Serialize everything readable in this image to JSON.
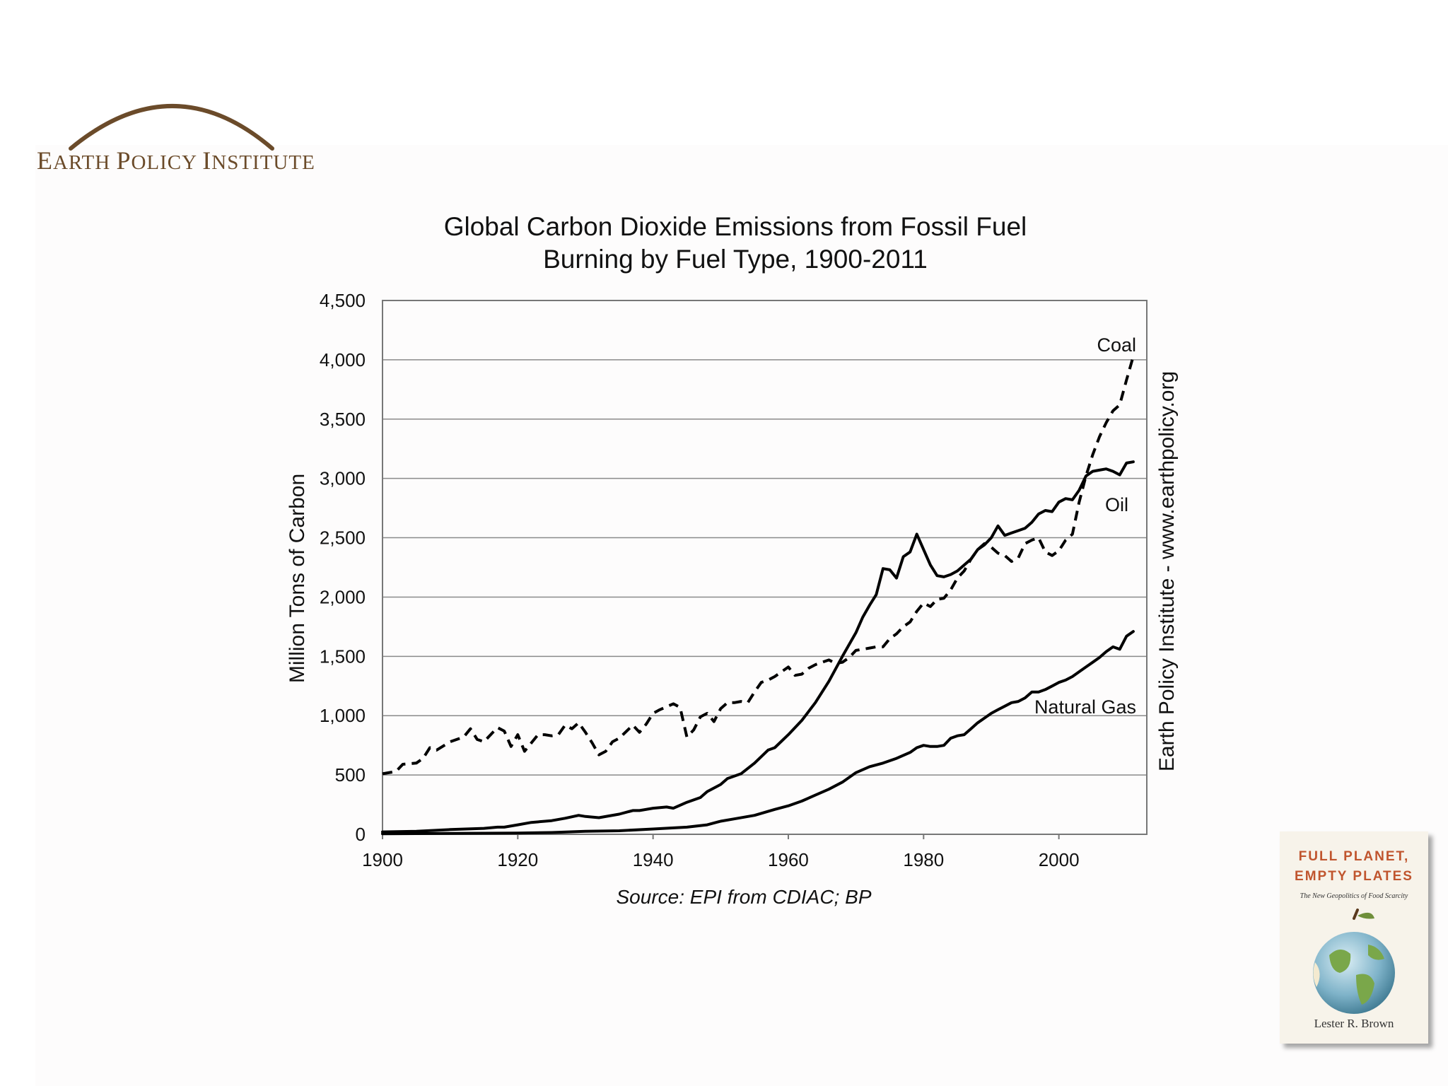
{
  "logo": {
    "text_first": "E",
    "text_rest": "ARTH ",
    "w2_first": "P",
    "w2_rest": "OLICY ",
    "w3_first": "I",
    "w3_rest": "NSTITUTE",
    "color": "#6b4b2a"
  },
  "side_note": "Earth Policy Institute - www.earthpolicy.org",
  "book": {
    "title": "FULL PLANET,\nEMPTY PLATES",
    "subtitle": "The New Geopolitics of Food Scarcity",
    "author": "Lester R. Brown",
    "title_color": "#c0552e"
  },
  "chart_data": {
    "type": "line",
    "title_line1": "Global Carbon Dioxide Emissions from Fossil Fuel",
    "title_line2": "Burning by Fuel Type, 1900-2011",
    "xlabel": "",
    "ylabel": "Million Tons of Carbon",
    "source": "Source: EPI from CDIAC; BP",
    "xlim": [
      1900,
      2013
    ],
    "ylim": [
      0,
      4500
    ],
    "x_ticks": [
      "1900",
      "1920",
      "1940",
      "1960",
      "1980",
      "2000"
    ],
    "y_ticks": [
      "0",
      "500",
      "1,000",
      "1,500",
      "2,000",
      "2,500",
      "3,000",
      "3,500",
      "4,000",
      "4,500"
    ],
    "grid": true,
    "series": [
      {
        "name": "Coal",
        "style": "dashed",
        "points": [
          [
            1900,
            510
          ],
          [
            1902,
            530
          ],
          [
            1903,
            590
          ],
          [
            1905,
            600
          ],
          [
            1906,
            640
          ],
          [
            1907,
            730
          ],
          [
            1908,
            710
          ],
          [
            1910,
            780
          ],
          [
            1912,
            820
          ],
          [
            1913,
            890
          ],
          [
            1914,
            800
          ],
          [
            1915,
            780
          ],
          [
            1917,
            900
          ],
          [
            1918,
            870
          ],
          [
            1919,
            740
          ],
          [
            1920,
            840
          ],
          [
            1921,
            700
          ],
          [
            1923,
            840
          ],
          [
            1924,
            840
          ],
          [
            1925,
            830
          ],
          [
            1926,
            840
          ],
          [
            1927,
            920
          ],
          [
            1928,
            890
          ],
          [
            1929,
            940
          ],
          [
            1930,
            860
          ],
          [
            1931,
            770
          ],
          [
            1932,
            670
          ],
          [
            1933,
            700
          ],
          [
            1934,
            780
          ],
          [
            1935,
            810
          ],
          [
            1937,
            920
          ],
          [
            1938,
            860
          ],
          [
            1939,
            930
          ],
          [
            1940,
            1020
          ],
          [
            1941,
            1050
          ],
          [
            1943,
            1100
          ],
          [
            1944,
            1070
          ],
          [
            1945,
            820
          ],
          [
            1946,
            880
          ],
          [
            1947,
            990
          ],
          [
            1948,
            1020
          ],
          [
            1949,
            950
          ],
          [
            1950,
            1060
          ],
          [
            1951,
            1110
          ],
          [
            1952,
            1110
          ],
          [
            1953,
            1120
          ],
          [
            1954,
            1110
          ],
          [
            1955,
            1200
          ],
          [
            1956,
            1280
          ],
          [
            1957,
            1300
          ],
          [
            1958,
            1330
          ],
          [
            1959,
            1370
          ],
          [
            1960,
            1410
          ],
          [
            1961,
            1340
          ],
          [
            1962,
            1350
          ],
          [
            1963,
            1400
          ],
          [
            1964,
            1430
          ],
          [
            1965,
            1450
          ],
          [
            1966,
            1470
          ],
          [
            1967,
            1440
          ],
          [
            1968,
            1450
          ],
          [
            1969,
            1490
          ],
          [
            1970,
            1550
          ],
          [
            1971,
            1560
          ],
          [
            1972,
            1570
          ],
          [
            1973,
            1580
          ],
          [
            1974,
            1580
          ],
          [
            1975,
            1650
          ],
          [
            1976,
            1690
          ],
          [
            1977,
            1750
          ],
          [
            1978,
            1790
          ],
          [
            1979,
            1880
          ],
          [
            1980,
            1950
          ],
          [
            1981,
            1920
          ],
          [
            1982,
            1980
          ],
          [
            1983,
            1990
          ],
          [
            1984,
            2060
          ],
          [
            1985,
            2160
          ],
          [
            1986,
            2220
          ],
          [
            1987,
            2320
          ],
          [
            1988,
            2400
          ],
          [
            1989,
            2450
          ],
          [
            1990,
            2420
          ],
          [
            1991,
            2370
          ],
          [
            1992,
            2350
          ],
          [
            1993,
            2300
          ],
          [
            1994,
            2330
          ],
          [
            1995,
            2450
          ],
          [
            1996,
            2480
          ],
          [
            1997,
            2500
          ],
          [
            1998,
            2380
          ],
          [
            1999,
            2350
          ],
          [
            2000,
            2390
          ],
          [
            2001,
            2480
          ],
          [
            2002,
            2530
          ],
          [
            2003,
            2800
          ],
          [
            2004,
            3020
          ],
          [
            2005,
            3200
          ],
          [
            2006,
            3350
          ],
          [
            2007,
            3470
          ],
          [
            2008,
            3570
          ],
          [
            2009,
            3620
          ],
          [
            2010,
            3830
          ],
          [
            2011,
            4030
          ]
        ]
      },
      {
        "name": "Oil",
        "style": "solid",
        "points": [
          [
            1900,
            20
          ],
          [
            1905,
            25
          ],
          [
            1910,
            40
          ],
          [
            1915,
            50
          ],
          [
            1917,
            60
          ],
          [
            1918,
            60
          ],
          [
            1920,
            80
          ],
          [
            1922,
            100
          ],
          [
            1925,
            115
          ],
          [
            1927,
            135
          ],
          [
            1929,
            160
          ],
          [
            1930,
            150
          ],
          [
            1932,
            140
          ],
          [
            1935,
            170
          ],
          [
            1937,
            200
          ],
          [
            1938,
            200
          ],
          [
            1940,
            220
          ],
          [
            1942,
            230
          ],
          [
            1943,
            220
          ],
          [
            1945,
            270
          ],
          [
            1947,
            310
          ],
          [
            1948,
            360
          ],
          [
            1950,
            420
          ],
          [
            1951,
            470
          ],
          [
            1953,
            510
          ],
          [
            1955,
            600
          ],
          [
            1957,
            710
          ],
          [
            1958,
            730
          ],
          [
            1960,
            840
          ],
          [
            1962,
            960
          ],
          [
            1964,
            1110
          ],
          [
            1966,
            1290
          ],
          [
            1968,
            1500
          ],
          [
            1970,
            1700
          ],
          [
            1971,
            1830
          ],
          [
            1972,
            1930
          ],
          [
            1973,
            2020
          ],
          [
            1974,
            2240
          ],
          [
            1975,
            2230
          ],
          [
            1976,
            2160
          ],
          [
            1977,
            2340
          ],
          [
            1978,
            2380
          ],
          [
            1979,
            2530
          ],
          [
            1980,
            2400
          ],
          [
            1981,
            2270
          ],
          [
            1982,
            2180
          ],
          [
            1983,
            2170
          ],
          [
            1984,
            2190
          ],
          [
            1985,
            2220
          ],
          [
            1986,
            2270
          ],
          [
            1987,
            2320
          ],
          [
            1988,
            2400
          ],
          [
            1989,
            2440
          ],
          [
            1990,
            2500
          ],
          [
            1991,
            2600
          ],
          [
            1992,
            2520
          ],
          [
            1993,
            2540
          ],
          [
            1994,
            2560
          ],
          [
            1995,
            2580
          ],
          [
            1996,
            2630
          ],
          [
            1997,
            2700
          ],
          [
            1998,
            2730
          ],
          [
            1999,
            2720
          ],
          [
            2000,
            2800
          ],
          [
            2001,
            2830
          ],
          [
            2002,
            2820
          ],
          [
            2003,
            2900
          ],
          [
            2004,
            3020
          ],
          [
            2005,
            3060
          ],
          [
            2006,
            3070
          ],
          [
            2007,
            3080
          ],
          [
            2008,
            3060
          ],
          [
            2009,
            3030
          ],
          [
            2010,
            3130
          ],
          [
            2011,
            3140
          ]
        ]
      },
      {
        "name": "Natural Gas",
        "style": "solid",
        "points": [
          [
            1900,
            5
          ],
          [
            1910,
            8
          ],
          [
            1920,
            10
          ],
          [
            1925,
            15
          ],
          [
            1930,
            25
          ],
          [
            1935,
            30
          ],
          [
            1940,
            45
          ],
          [
            1945,
            60
          ],
          [
            1948,
            80
          ],
          [
            1950,
            110
          ],
          [
            1952,
            130
          ],
          [
            1955,
            160
          ],
          [
            1958,
            210
          ],
          [
            1960,
            240
          ],
          [
            1962,
            280
          ],
          [
            1964,
            330
          ],
          [
            1966,
            380
          ],
          [
            1968,
            440
          ],
          [
            1970,
            520
          ],
          [
            1972,
            570
          ],
          [
            1974,
            600
          ],
          [
            1976,
            640
          ],
          [
            1978,
            690
          ],
          [
            1979,
            730
          ],
          [
            1980,
            750
          ],
          [
            1981,
            740
          ],
          [
            1982,
            740
          ],
          [
            1983,
            750
          ],
          [
            1984,
            810
          ],
          [
            1985,
            830
          ],
          [
            1986,
            840
          ],
          [
            1987,
            890
          ],
          [
            1988,
            940
          ],
          [
            1989,
            980
          ],
          [
            1990,
            1020
          ],
          [
            1991,
            1050
          ],
          [
            1992,
            1080
          ],
          [
            1993,
            1110
          ],
          [
            1994,
            1120
          ],
          [
            1995,
            1150
          ],
          [
            1996,
            1200
          ],
          [
            1997,
            1200
          ],
          [
            1998,
            1220
          ],
          [
            1999,
            1250
          ],
          [
            2000,
            1280
          ],
          [
            2001,
            1300
          ],
          [
            2002,
            1330
          ],
          [
            2003,
            1370
          ],
          [
            2004,
            1410
          ],
          [
            2005,
            1450
          ],
          [
            2006,
            1490
          ],
          [
            2007,
            1540
          ],
          [
            2008,
            1580
          ],
          [
            2009,
            1560
          ],
          [
            2010,
            1670
          ],
          [
            2011,
            1710
          ]
        ]
      }
    ]
  }
}
